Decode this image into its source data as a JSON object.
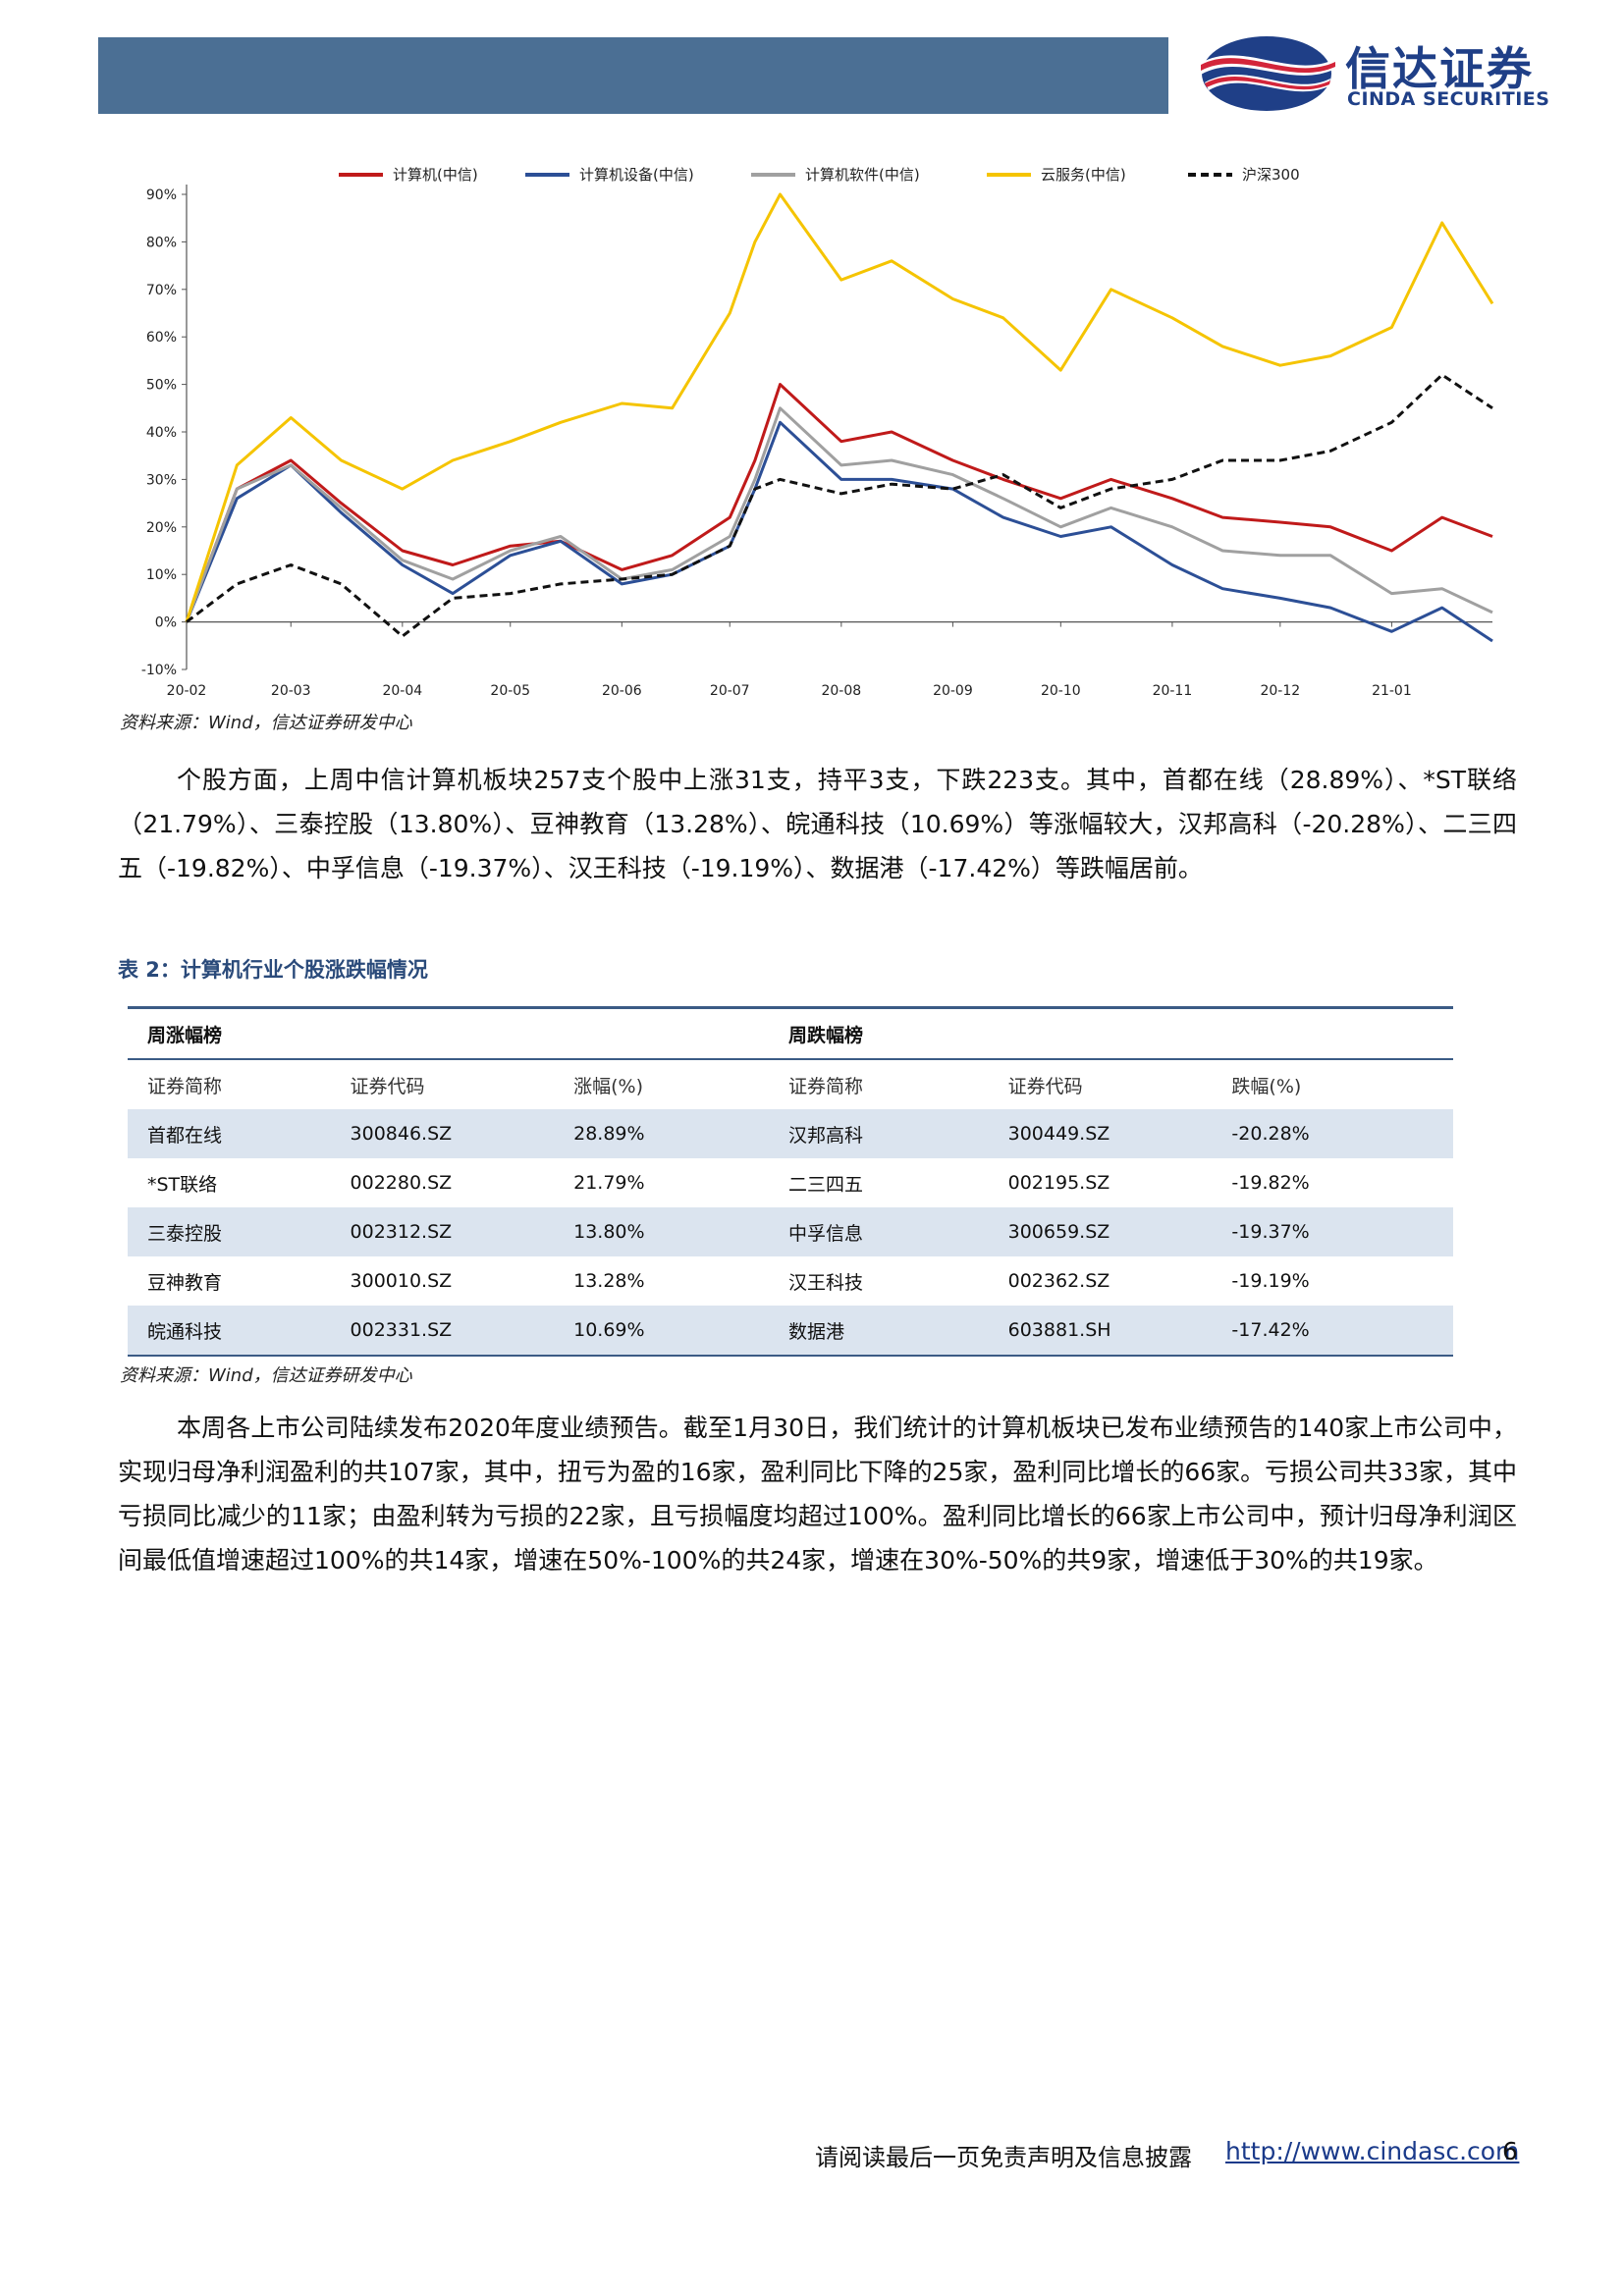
{
  "header": {
    "logo_cn": "信达证券",
    "logo_en": "CINDA SECURITIES",
    "bar_color": "#4b6f94",
    "logo_colors": [
      "#d3253a",
      "#1f3f87"
    ]
  },
  "figure": {
    "source": "资料来源：Wind，信达证券研发中心"
  },
  "chart_data": {
    "type": "line",
    "y_unit": "%",
    "ylim": [
      -10,
      90
    ],
    "y_ticks": [
      -10,
      0,
      10,
      20,
      30,
      40,
      50,
      60,
      70,
      80,
      90
    ],
    "y_tick_labels": [
      "-10%",
      "0%",
      "10%",
      "20%",
      "30%",
      "40%",
      "50%",
      "60%",
      "70%",
      "80%",
      "90%"
    ],
    "x_tick_labels": [
      "20-02",
      "20-03",
      "20-04",
      "20-05",
      "20-06",
      "20-07",
      "20-08",
      "20-09",
      "20-10",
      "20-11",
      "20-12",
      "21-01"
    ],
    "x": [
      "20-02-01",
      "20-02-15",
      "20-03-01",
      "20-03-15",
      "20-04-01",
      "20-04-15",
      "20-05-01",
      "20-05-15",
      "20-06-01",
      "20-06-15",
      "20-07-01",
      "20-07-08",
      "20-07-15",
      "20-08-01",
      "20-08-15",
      "20-09-01",
      "20-09-15",
      "20-10-01",
      "20-10-15",
      "20-11-01",
      "20-11-15",
      "20-12-01",
      "20-12-15",
      "21-01-01",
      "21-01-15",
      "21-01-29"
    ],
    "legend_position": "top",
    "grid": false,
    "series": [
      {
        "name": "计算机(中信)",
        "color": "#c01a1a",
        "dash": false,
        "values": [
          0,
          28,
          34,
          25,
          15,
          12,
          16,
          17,
          11,
          14,
          22,
          34,
          50,
          38,
          40,
          34,
          30,
          26,
          30,
          26,
          22,
          21,
          20,
          15,
          22,
          18
        ]
      },
      {
        "name": "计算机设备(中信)",
        "color": "#2c4f96",
        "dash": false,
        "values": [
          0,
          26,
          33,
          23,
          12,
          6,
          14,
          17,
          8,
          10,
          16,
          28,
          42,
          30,
          30,
          28,
          22,
          18,
          20,
          12,
          7,
          5,
          3,
          -2,
          3,
          -4
        ]
      },
      {
        "name": "计算机软件(中信)",
        "color": "#a0a0a0",
        "dash": false,
        "values": [
          0,
          28,
          33,
          24,
          13,
          9,
          15,
          18,
          9,
          11,
          18,
          30,
          45,
          33,
          34,
          31,
          26,
          20,
          24,
          20,
          15,
          14,
          14,
          6,
          7,
          2
        ]
      },
      {
        "name": "云服务(中信)",
        "color": "#f5c400",
        "dash": false,
        "values": [
          0,
          33,
          43,
          34,
          28,
          34,
          38,
          42,
          46,
          45,
          65,
          80,
          90,
          72,
          76,
          68,
          64,
          53,
          70,
          64,
          58,
          54,
          56,
          62,
          84,
          67
        ]
      },
      {
        "name": "沪深300",
        "color": "#111111",
        "dash": true,
        "values": [
          0,
          8,
          12,
          8,
          -3,
          5,
          6,
          8,
          9,
          10,
          16,
          28,
          30,
          27,
          29,
          28,
          31,
          24,
          28,
          30,
          34,
          34,
          36,
          42,
          52,
          45
        ]
      }
    ]
  },
  "paragraph1": "个股方面，上周中信计算机板块257支个股中上涨31支，持平3支，下跌223支。其中，首都在线（28.89%）、*ST联络（21.79%）、三泰控股（13.80%）、豆神教育（13.28%）、皖通科技（10.69%）等涨幅较大，汉邦高科（-20.28%）、二三四五（-19.82%）、中孚信息（-19.37%）、汉王科技（-19.19%）、数据港（-17.42%）等跌幅居前。",
  "table": {
    "title": "表 2：计算机行业个股涨跌幅情况",
    "group_left": "周涨幅榜",
    "group_right": "周跌幅榜",
    "columns": [
      "证券简称",
      "证券代码",
      "涨幅(%)",
      "证券简称",
      "证券代码",
      "跌幅(%)"
    ],
    "rows": [
      [
        "首都在线",
        "300846.SZ",
        "28.89%",
        "汉邦高科",
        "300449.SZ",
        "-20.28%"
      ],
      [
        "*ST联络",
        "002280.SZ",
        "21.79%",
        "二三四五",
        "002195.SZ",
        "-19.82%"
      ],
      [
        "三泰控股",
        "002312.SZ",
        "13.80%",
        "中孚信息",
        "300659.SZ",
        "-19.37%"
      ],
      [
        "豆神教育",
        "300010.SZ",
        "13.28%",
        "汉王科技",
        "002362.SZ",
        "-19.19%"
      ],
      [
        "皖通科技",
        "002331.SZ",
        "10.69%",
        "数据港",
        "603881.SH",
        "-17.42%"
      ]
    ],
    "source": "资料来源：Wind，信达证券研发中心"
  },
  "paragraph2": "本周各上市公司陆续发布2020年度业绩预告。截至1月30日，我们统计的计算机板块已发布业绩预告的140家上市公司中，实现归母净利润盈利的共107家，其中，扭亏为盈的16家，盈利同比下降的25家，盈利同比增长的66家。亏损公司共33家，其中亏损同比减少的11家；由盈利转为亏损的22家，且亏损幅度均超过100%。盈利同比增长的66家上市公司中，预计归母净利润区间最低值增速超过100%的共14家，增速在50%-100%的共24家，增速在30%-50%的共9家，增速低于30%的共19家。",
  "footer": {
    "disclaimer": "请阅读最后一页免责声明及信息披露",
    "link": "http://www.cindasc.com",
    "page": "6"
  }
}
